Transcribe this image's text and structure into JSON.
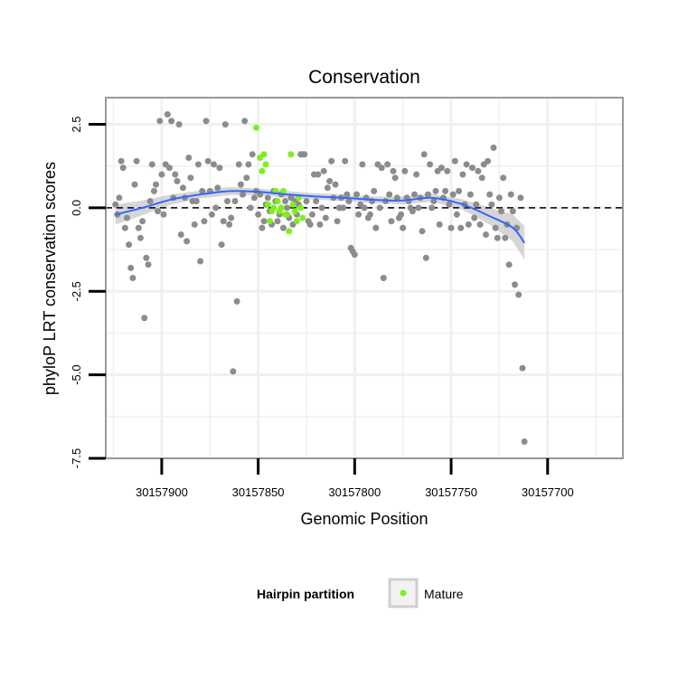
{
  "chart_data": {
    "type": "scatter",
    "title": "Conservation",
    "xlabel": "Genomic Position",
    "ylabel": "phyloP LRT conservation scores",
    "x_reversed": true,
    "xlim": [
      30157661,
      30157929
    ],
    "ylim": [
      -7.5,
      3.3
    ],
    "x_ticks": [
      30157900,
      30157850,
      30157800,
      30157750,
      30157700
    ],
    "x_tick_labels": [
      "30157900",
      "30157850",
      "30157800",
      "30157750",
      "30157700"
    ],
    "y_ticks": [
      2.5,
      0.0,
      -2.5,
      -5.0,
      -7.5
    ],
    "y_tick_labels": [
      "2.5",
      "0.0",
      "-2.5",
      "-5.0",
      "-7.5"
    ],
    "reference_line_y": 0,
    "legend": {
      "title": "Hairpin partition",
      "entries": [
        {
          "label": "Mature",
          "color": "#80ee1c"
        }
      ],
      "position": "bottom"
    },
    "colors": {
      "other": "#8c8c8c",
      "mature": "#80ee1c",
      "smooth": "#3366ff",
      "band": "#c8c8c8",
      "grid": "#f0f0f0",
      "frame": "#999999"
    },
    "series": [
      {
        "name": "Other",
        "points": [
          [
            30157924,
            0.1
          ],
          [
            30157923,
            -0.2
          ],
          [
            30157922,
            0.3
          ],
          [
            30157921,
            1.4
          ],
          [
            30157920,
            1.2
          ],
          [
            30157919,
            -0.6
          ],
          [
            30157918,
            -0.3
          ],
          [
            30157917,
            -1.1
          ],
          [
            30157916,
            -1.8
          ],
          [
            30157915,
            -2.1
          ],
          [
            30157914,
            0.7
          ],
          [
            30157913,
            1.4
          ],
          [
            30157912,
            -0.6
          ],
          [
            30157911,
            -0.9
          ],
          [
            30157910,
            -0.4
          ],
          [
            30157909,
            -3.3
          ],
          [
            30157908,
            -1.5
          ],
          [
            30157907,
            -1.7
          ],
          [
            30157906,
            0.2
          ],
          [
            30157905,
            1.3
          ],
          [
            30157904,
            0.5
          ],
          [
            30157903,
            0.7
          ],
          [
            30157902,
            -0.1
          ],
          [
            30157901,
            2.6
          ],
          [
            30157900,
            1.0
          ],
          [
            30157899,
            -0.2
          ],
          [
            30157898,
            1.3
          ],
          [
            30157897,
            2.8
          ],
          [
            30157896,
            1.2
          ],
          [
            30157895,
            2.6
          ],
          [
            30157894,
            0.3
          ],
          [
            30157893,
            1.0
          ],
          [
            30157892,
            0.8
          ],
          [
            30157891,
            2.5
          ],
          [
            30157890,
            -0.8
          ],
          [
            30157889,
            0.6
          ],
          [
            30157888,
            0.3
          ],
          [
            30157887,
            -1.0
          ],
          [
            30157886,
            1.5
          ],
          [
            30157885,
            0.9
          ],
          [
            30157884,
            0.2
          ],
          [
            30157883,
            -0.5
          ],
          [
            30157882,
            0.2
          ],
          [
            30157881,
            1.3
          ],
          [
            30157880,
            -1.6
          ],
          [
            30157879,
            0.5
          ],
          [
            30157878,
            -0.4
          ],
          [
            30157877,
            2.6
          ],
          [
            30157876,
            1.4
          ],
          [
            30157875,
            0.5
          ],
          [
            30157874,
            -0.2
          ],
          [
            30157873,
            1.3
          ],
          [
            30157872,
            0.0
          ],
          [
            30157871,
            0.6
          ],
          [
            30157870,
            1.2
          ],
          [
            30157869,
            -1.1
          ],
          [
            30157868,
            -0.4
          ],
          [
            30157867,
            2.5
          ],
          [
            30157866,
            0.2
          ],
          [
            30157865,
            -0.5
          ],
          [
            30157864,
            -0.3
          ],
          [
            30157863,
            -4.9
          ],
          [
            30157862,
            0.2
          ],
          [
            30157861,
            -2.8
          ],
          [
            30157860,
            1.3
          ],
          [
            30157859,
            0.7
          ],
          [
            30157858,
            0.4
          ],
          [
            30157857,
            2.6
          ],
          [
            30157856,
            0.9
          ],
          [
            30157855,
            1.3
          ],
          [
            30157854,
            0.0
          ],
          [
            30157853,
            1.6
          ],
          [
            30157852,
            0.3
          ],
          [
            30157851,
            0.5
          ],
          [
            30157850,
            -0.2
          ],
          [
            30157849,
            0.4
          ],
          [
            30157848,
            -0.6
          ],
          [
            30157847,
            -0.4
          ],
          [
            30157846,
            0.1
          ],
          [
            30157845,
            0.3
          ],
          [
            30157844,
            -0.1
          ],
          [
            30157843,
            -0.5
          ],
          [
            30157842,
            0.5
          ],
          [
            30157841,
            0.2
          ],
          [
            30157840,
            -0.4
          ],
          [
            30157839,
            -0.2
          ],
          [
            30157838,
            0.4
          ],
          [
            30157837,
            -0.6
          ],
          [
            30157836,
            0.2
          ],
          [
            30157835,
            0.0
          ],
          [
            30157834,
            -0.3
          ],
          [
            30157833,
            0.3
          ],
          [
            30157832,
            -0.5
          ],
          [
            30157831,
            0.2
          ],
          [
            30157830,
            -0.2
          ],
          [
            30157829,
            0.1
          ],
          [
            30157828,
            1.6
          ],
          [
            30157827,
            1.6
          ],
          [
            30157826,
            1.6
          ],
          [
            30157825,
            0.2
          ],
          [
            30157824,
            -0.4
          ],
          [
            30157823,
            -0.5
          ],
          [
            30157822,
            -0.2
          ],
          [
            30157821,
            1.0
          ],
          [
            30157820,
            0.2
          ],
          [
            30157819,
            1.0
          ],
          [
            30157818,
            -0.5
          ],
          [
            30157817,
            0.0
          ],
          [
            30157816,
            1.1
          ],
          [
            30157815,
            -0.3
          ],
          [
            30157814,
            0.6
          ],
          [
            30157813,
            0.8
          ],
          [
            30157812,
            1.4
          ],
          [
            30157811,
            0.3
          ],
          [
            30157810,
            0.7
          ],
          [
            30157809,
            -0.4
          ],
          [
            30157808,
            0.0
          ],
          [
            30157807,
            0.3
          ],
          [
            30157806,
            0.0
          ],
          [
            30157805,
            1.4
          ],
          [
            30157804,
            0.4
          ],
          [
            30157803,
            0.2
          ],
          [
            30157802,
            -1.2
          ],
          [
            30157801,
            -1.3
          ],
          [
            30157800,
            -1.4
          ],
          [
            30157799,
            0.4
          ],
          [
            30157798,
            -0.2
          ],
          [
            30157797,
            0.1
          ],
          [
            30157796,
            1.3
          ],
          [
            30157795,
            0.0
          ],
          [
            30157794,
            0.3
          ],
          [
            30157793,
            -0.3
          ],
          [
            30157792,
            -0.2
          ],
          [
            30157791,
            0.2
          ],
          [
            30157790,
            0.5
          ],
          [
            30157789,
            -0.6
          ],
          [
            30157788,
            1.3
          ],
          [
            30157787,
            0.0
          ],
          [
            30157786,
            1.2
          ],
          [
            30157785,
            -2.1
          ],
          [
            30157784,
            0.2
          ],
          [
            30157783,
            1.3
          ],
          [
            30157782,
            0.4
          ],
          [
            30157781,
            -0.4
          ],
          [
            30157780,
            1.1
          ],
          [
            30157779,
            0.9
          ],
          [
            30157778,
            0.3
          ],
          [
            30157777,
            -0.3
          ],
          [
            30157776,
            -0.2
          ],
          [
            30157775,
            -0.6
          ],
          [
            30157774,
            1.1
          ],
          [
            30157773,
            0.3
          ],
          [
            30157772,
            0.2
          ],
          [
            30157771,
            0.0
          ],
          [
            30157770,
            -0.1
          ],
          [
            30157769,
            0.4
          ],
          [
            30157768,
            1.0
          ],
          [
            30157767,
            0.0
          ],
          [
            30157766,
            0.3
          ],
          [
            30157765,
            -0.7
          ],
          [
            30157764,
            1.6
          ],
          [
            30157763,
            -1.5
          ],
          [
            30157762,
            0.4
          ],
          [
            30157761,
            1.3
          ],
          [
            30157760,
            0.0
          ],
          [
            30157759,
            0.2
          ],
          [
            30157758,
            0.5
          ],
          [
            30157757,
            1.1
          ],
          [
            30157756,
            -0.5
          ],
          [
            30157755,
            1.2
          ],
          [
            30157754,
            0.3
          ],
          [
            30157753,
            0.5
          ],
          [
            30157752,
            1.1
          ],
          [
            30157751,
            0.1
          ],
          [
            30157750,
            -0.6
          ],
          [
            30157749,
            0.4
          ],
          [
            30157748,
            1.4
          ],
          [
            30157747,
            -0.2
          ],
          [
            30157746,
            0.5
          ],
          [
            30157745,
            -0.6
          ],
          [
            30157744,
            1.0
          ],
          [
            30157743,
            0.1
          ],
          [
            30157742,
            1.3
          ],
          [
            30157741,
            -0.5
          ],
          [
            30157740,
            0.4
          ],
          [
            30157739,
            1.2
          ],
          [
            30157738,
            -0.3
          ],
          [
            30157737,
            0.1
          ],
          [
            30157736,
            1.1
          ],
          [
            30157735,
            -0.5
          ],
          [
            30157734,
            0.9
          ],
          [
            30157733,
            1.3
          ],
          [
            30157732,
            -0.8
          ],
          [
            30157731,
            1.4
          ],
          [
            30157730,
            0.4
          ],
          [
            30157729,
            0.1
          ],
          [
            30157728,
            1.8
          ],
          [
            30157727,
            -0.6
          ],
          [
            30157726,
            -0.9
          ],
          [
            30157725,
            0.3
          ],
          [
            30157724,
            -0.1
          ],
          [
            30157723,
            0.9
          ],
          [
            30157722,
            -0.9
          ],
          [
            30157721,
            -0.5
          ],
          [
            30157720,
            -1.7
          ],
          [
            30157719,
            0.4
          ],
          [
            30157718,
            -0.1
          ],
          [
            30157717,
            -2.3
          ],
          [
            30157716,
            -0.6
          ],
          [
            30157715,
            -2.6
          ],
          [
            30157714,
            0.3
          ],
          [
            30157713,
            -4.8
          ],
          [
            30157712,
            -7.0
          ]
        ]
      },
      {
        "name": "Mature",
        "points": [
          [
            30157851,
            2.4
          ],
          [
            30157849,
            1.5
          ],
          [
            30157848,
            1.1
          ],
          [
            30157847,
            1.6
          ],
          [
            30157846,
            1.3
          ],
          [
            30157845,
            0.1
          ],
          [
            30157844,
            -0.4
          ],
          [
            30157843,
            -0.1
          ],
          [
            30157842,
            0.0
          ],
          [
            30157841,
            0.5
          ],
          [
            30157840,
            0.2
          ],
          [
            30157839,
            -0.1
          ],
          [
            30157838,
            0.0
          ],
          [
            30157837,
            0.5
          ],
          [
            30157836,
            -0.2
          ],
          [
            30157835,
            -0.2
          ],
          [
            30157834,
            -0.7
          ],
          [
            30157833,
            1.6
          ],
          [
            30157832,
            0.1
          ],
          [
            30157831,
            -0.1
          ],
          [
            30157830,
            -0.4
          ],
          [
            30157829,
            0.3
          ],
          [
            30157828,
            0.0
          ],
          [
            30157827,
            -0.3
          ]
        ]
      }
    ],
    "smooth": {
      "x": [
        30157924,
        30157910,
        30157895,
        30157880,
        30157865,
        30157850,
        30157835,
        30157820,
        30157805,
        30157790,
        30157775,
        30157760,
        30157745,
        30157730,
        30157718,
        30157712
      ],
      "y": [
        -0.2,
        0.0,
        0.25,
        0.4,
        0.5,
        0.48,
        0.4,
        0.34,
        0.3,
        0.24,
        0.22,
        0.3,
        0.12,
        -0.25,
        -0.6,
        -1.05
      ],
      "band": [
        0.3,
        0.22,
        0.15,
        0.12,
        0.12,
        0.1,
        0.1,
        0.1,
        0.1,
        0.1,
        0.12,
        0.12,
        0.15,
        0.25,
        0.4,
        0.5
      ]
    }
  }
}
